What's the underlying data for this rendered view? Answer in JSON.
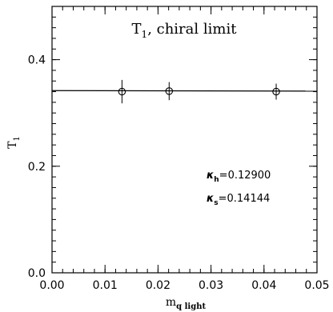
{
  "chart_data": {
    "type": "scatter",
    "title": "T",
    "title_subscript": "1",
    "title_suffix": ", chiral limit",
    "xlabel": "m",
    "xlabel_subscript": "q light",
    "ylabel": "T",
    "ylabel_subscript": "1",
    "xlim": [
      0.0,
      0.05
    ],
    "ylim": [
      0.0,
      0.5
    ],
    "x_ticks": [
      0.0,
      0.01,
      0.02,
      0.03,
      0.04,
      0.05
    ],
    "x_tick_labels": [
      "0.00",
      "0.01",
      "0.02",
      "0.03",
      "0.04",
      "0.05"
    ],
    "y_ticks": [
      0.0,
      0.2,
      0.4
    ],
    "y_tick_labels": [
      "0.0",
      "0.2",
      "0.4"
    ],
    "series": [
      {
        "x": [
          0.0132,
          0.0221,
          0.0423
        ],
        "y": [
          0.34,
          0.341,
          0.34
        ],
        "yerr": [
          0.022,
          0.017,
          0.015
        ]
      }
    ],
    "fit_line": {
      "x": [
        0.0,
        0.05
      ],
      "y": [
        0.342,
        0.341
      ]
    },
    "annotations": [
      {
        "symbol": "κ",
        "sub": "h",
        "value": "=0.12900"
      },
      {
        "symbol": "κ",
        "sub": "s",
        "value": "=0.14144"
      }
    ],
    "grid": false
  }
}
